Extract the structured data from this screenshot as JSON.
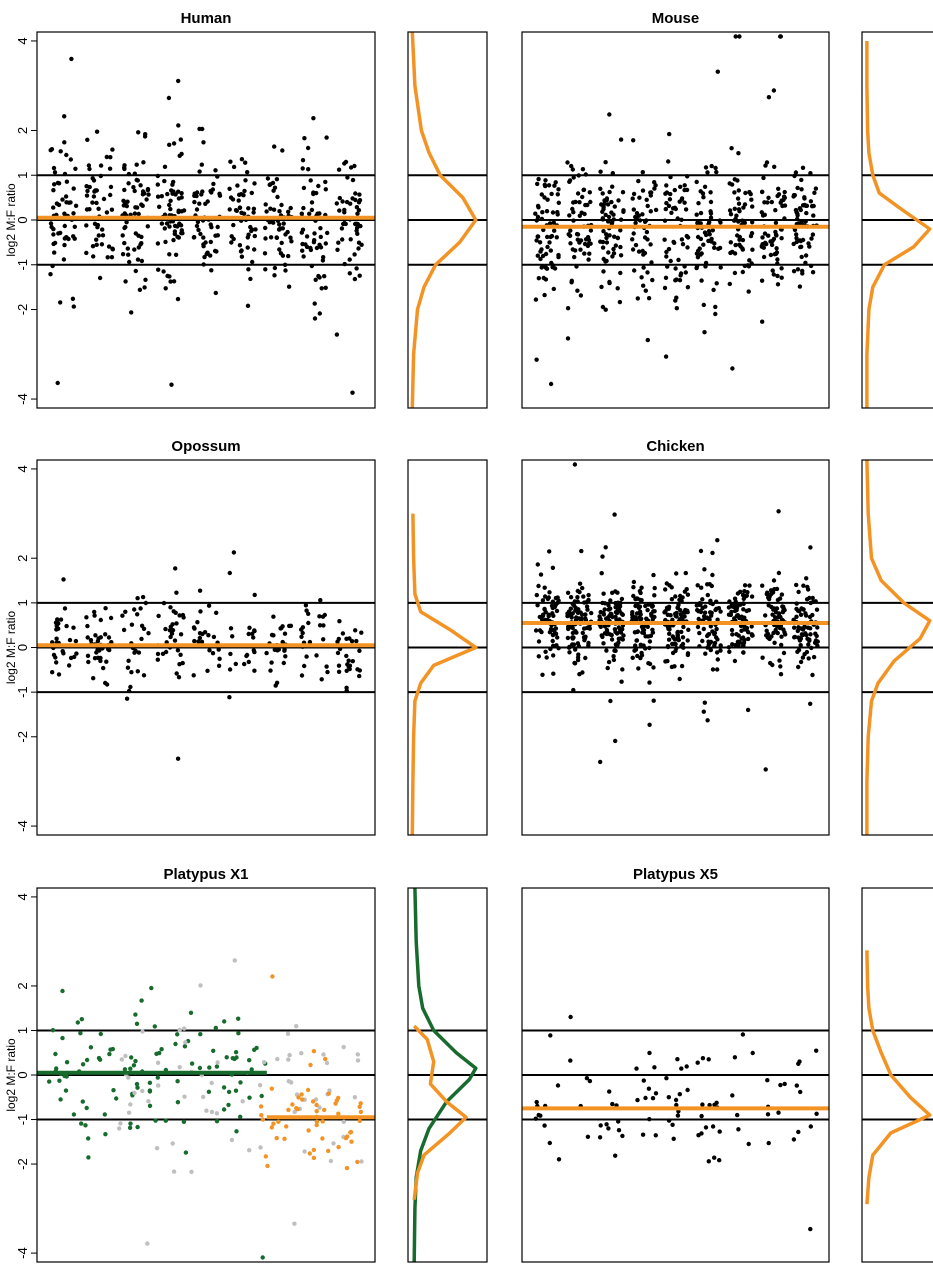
{
  "chart_data": {
    "type": "scatter",
    "ylabel": "log2 M:F ratio",
    "y_ticks": [
      -4,
      -2,
      -1,
      0,
      1,
      2,
      4
    ],
    "ylim": [
      -4.2,
      4.2
    ],
    "reference_lines": [
      -1,
      0,
      1
    ],
    "colors": {
      "points": "#000000",
      "median": "#f39324",
      "green": "#176b2c",
      "gray": "#bfbfbf",
      "orange": "#f39324"
    },
    "panels": [
      {
        "title": "Human",
        "n_points": 520,
        "median": 0.05,
        "density_peak": 0.0,
        "density": [
          [
            -4.3,
            0.02
          ],
          [
            -3,
            0.04
          ],
          [
            -2,
            0.1
          ],
          [
            -1.5,
            0.2
          ],
          [
            -1,
            0.38
          ],
          [
            -0.5,
            0.75
          ],
          [
            0,
            1.0
          ],
          [
            0.5,
            0.8
          ],
          [
            1,
            0.45
          ],
          [
            1.5,
            0.28
          ],
          [
            2,
            0.16
          ],
          [
            3,
            0.06
          ],
          [
            4.3,
            0.02
          ]
        ]
      },
      {
        "title": "Mouse",
        "n_points": 560,
        "median": -0.15,
        "density": [
          [
            -4.3,
            0.03
          ],
          [
            -3,
            0.03
          ],
          [
            -2,
            0.06
          ],
          [
            -1.5,
            0.12
          ],
          [
            -1,
            0.3
          ],
          [
            -0.6,
            0.75
          ],
          [
            -0.2,
            1.0
          ],
          [
            0.2,
            0.6
          ],
          [
            0.6,
            0.22
          ],
          [
            1,
            0.12
          ],
          [
            1.5,
            0.06
          ],
          [
            2,
            0.04
          ],
          [
            3,
            0.03
          ],
          [
            4,
            0.03
          ]
        ]
      },
      {
        "title": "Opossum",
        "n_points": 260,
        "median": 0.05,
        "density": [
          [
            -4.3,
            0.02
          ],
          [
            -3,
            0.03
          ],
          [
            -2,
            0.04
          ],
          [
            -1.2,
            0.06
          ],
          [
            -0.8,
            0.15
          ],
          [
            -0.4,
            0.35
          ],
          [
            0,
            1.0
          ],
          [
            0.4,
            0.6
          ],
          [
            0.8,
            0.15
          ],
          [
            1.2,
            0.06
          ],
          [
            2,
            0.04
          ],
          [
            3,
            0.03
          ]
        ]
      },
      {
        "title": "Chicken",
        "n_points": 750,
        "median": 0.55,
        "density": [
          [
            -4.3,
            0.03
          ],
          [
            -3,
            0.03
          ],
          [
            -2,
            0.05
          ],
          [
            -1.2,
            0.1
          ],
          [
            -0.8,
            0.2
          ],
          [
            -0.3,
            0.45
          ],
          [
            0.2,
            0.85
          ],
          [
            0.6,
            1.0
          ],
          [
            1,
            0.6
          ],
          [
            1.5,
            0.25
          ],
          [
            2,
            0.1
          ],
          [
            3,
            0.05
          ],
          [
            4.2,
            0.03
          ]
        ]
      },
      {
        "title": "Platypus X1",
        "median": 0.05,
        "groups": [
          {
            "color": "green",
            "n_points": 110,
            "median": 0.05,
            "median_x_range": [
              0.0,
              0.68
            ]
          },
          {
            "color": "gray",
            "n_points": 70
          },
          {
            "color": "orange",
            "n_points": 55,
            "median": -0.95,
            "median_x_range": [
              0.68,
              1.0
            ]
          }
        ],
        "density_green": [
          [
            -4.3,
            0.05
          ],
          [
            -3,
            0.06
          ],
          [
            -2.3,
            0.08
          ],
          [
            -1.7,
            0.15
          ],
          [
            -1.2,
            0.28
          ],
          [
            -0.6,
            0.55
          ],
          [
            -0.1,
            0.9
          ],
          [
            0.15,
            1.0
          ],
          [
            0.5,
            0.7
          ],
          [
            1,
            0.35
          ],
          [
            1.5,
            0.18
          ],
          [
            2,
            0.12
          ],
          [
            3,
            0.08
          ],
          [
            4.3,
            0.06
          ]
        ],
        "density_orange": [
          [
            -2.8,
            0.05
          ],
          [
            -2.2,
            0.1
          ],
          [
            -1.8,
            0.2
          ],
          [
            -1.3,
            0.6
          ],
          [
            -0.95,
            0.85
          ],
          [
            -0.6,
            0.55
          ],
          [
            -0.2,
            0.3
          ],
          [
            0.3,
            0.35
          ],
          [
            0.8,
            0.25
          ],
          [
            1.1,
            0.05
          ]
        ]
      },
      {
        "title": "Platypus X5",
        "n_points": 95,
        "median": -0.75,
        "density": [
          [
            -2.9,
            0.03
          ],
          [
            -2.3,
            0.06
          ],
          [
            -1.8,
            0.12
          ],
          [
            -1.3,
            0.4
          ],
          [
            -0.9,
            1.0
          ],
          [
            -0.5,
            0.7
          ],
          [
            0,
            0.4
          ],
          [
            0.5,
            0.25
          ],
          [
            1,
            0.12
          ],
          [
            1.5,
            0.06
          ],
          [
            2,
            0.04
          ],
          [
            2.8,
            0.03
          ]
        ]
      }
    ]
  }
}
